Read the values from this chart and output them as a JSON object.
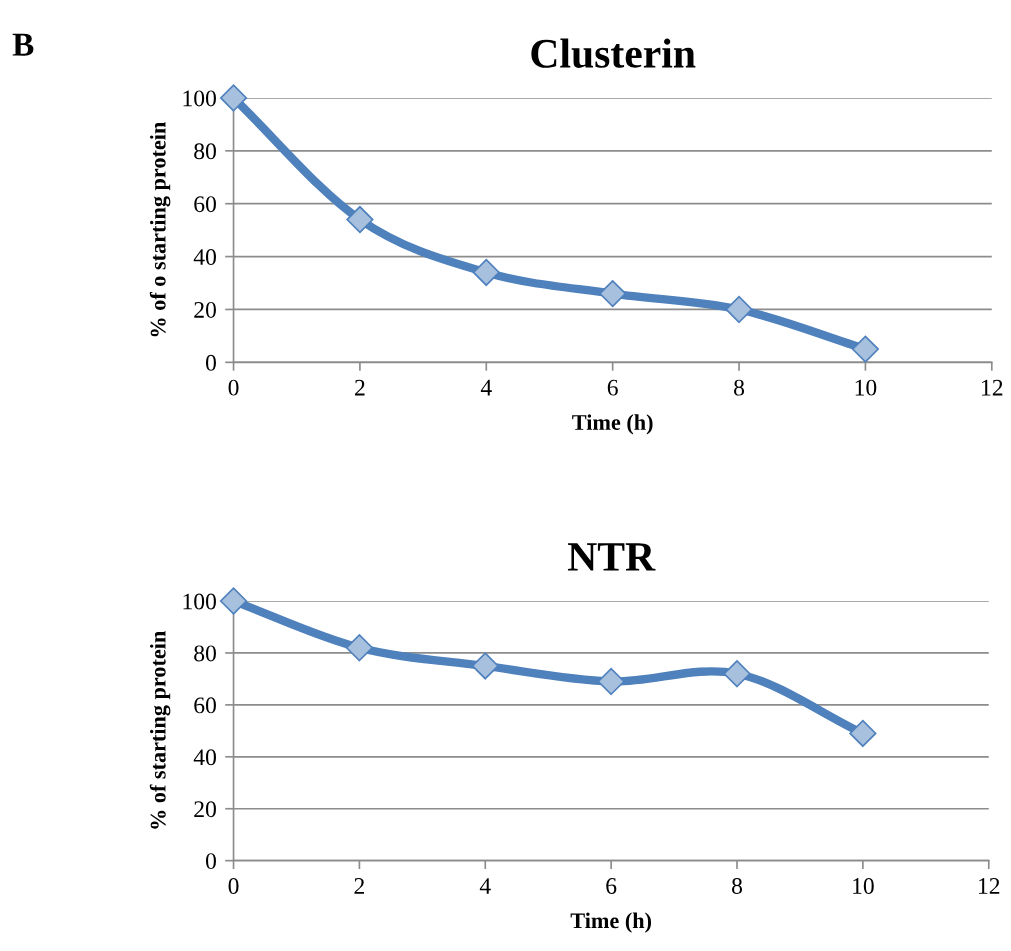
{
  "chart_data": [
    {
      "type": "line",
      "title": "Clusterin",
      "xlabel": "Time (h)",
      "ylabel": "% of o starting protein",
      "annotations": [
        "B"
      ],
      "x": [
        0,
        2,
        4,
        6,
        8,
        10
      ],
      "series": [
        {
          "color": "#4f81bd",
          "values": [
            100,
            54,
            34,
            26,
            20,
            5
          ]
        }
      ],
      "xlim": [
        0,
        12
      ],
      "xticks": [
        0,
        2,
        4,
        6,
        8,
        10,
        12
      ],
      "ylim": [
        0,
        100
      ],
      "yticks": [
        0,
        20,
        40,
        60,
        80,
        100
      ],
      "grid": "y",
      "marker": "diamond",
      "line_style": "solid"
    },
    {
      "type": "line",
      "title": "NTR",
      "xlabel": "Time (h)",
      "ylabel": "% of starting protein",
      "x": [
        0,
        2,
        4,
        6,
        8,
        10
      ],
      "series": [
        {
          "color": "#4f81bd",
          "values": [
            100,
            82,
            75,
            69,
            72,
            49
          ]
        }
      ],
      "xlim": [
        0,
        12
      ],
      "xticks": [
        0,
        2,
        4,
        6,
        8,
        10,
        12
      ],
      "ylim": [
        0,
        100
      ],
      "yticks": [
        0,
        20,
        40,
        60,
        80,
        100
      ],
      "grid": "y",
      "marker": "diamond",
      "line_style": "solid"
    }
  ]
}
